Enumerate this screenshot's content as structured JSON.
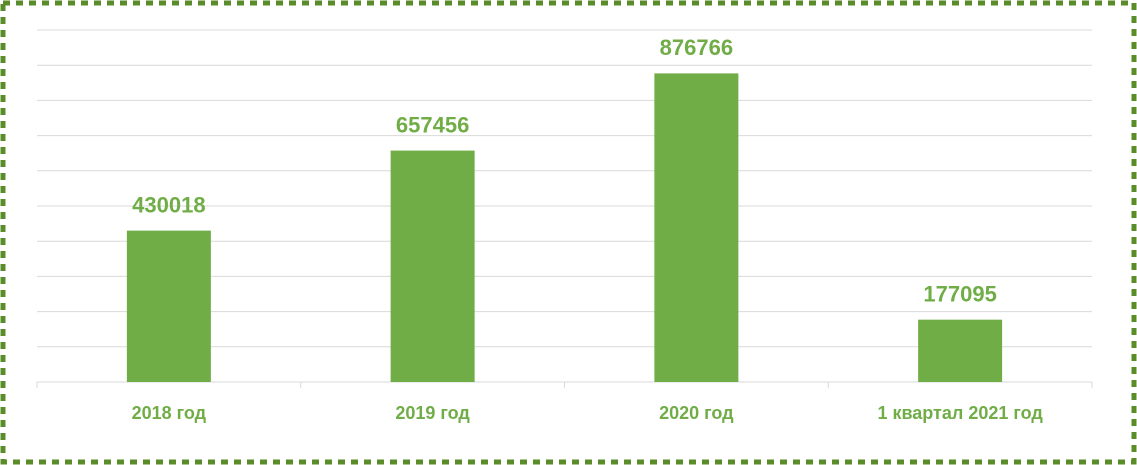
{
  "chart_data": {
    "type": "bar",
    "categories": [
      "2018 год",
      "2019 год",
      "2020 год",
      "1 квартал 2021 год"
    ],
    "values": [
      430018,
      657456,
      876766,
      177095
    ],
    "color": "#70ad47",
    "ylim": [
      0,
      1000000
    ],
    "yticks": [
      0,
      100000,
      200000,
      300000,
      400000,
      500000,
      600000,
      700000,
      800000,
      900000,
      1000000
    ],
    "grid": true
  }
}
